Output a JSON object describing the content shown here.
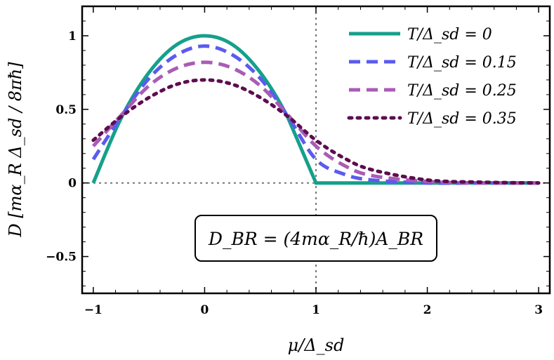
{
  "chart_data": {
    "type": "line",
    "xlabel": "μ/Δ_sd",
    "ylabel": "D [mα_R Δ_sd / 8πħ]",
    "xlim": [
      -1.1,
      3.1
    ],
    "ylim": [
      -0.75,
      1.2
    ],
    "xticks": [
      -1,
      0,
      1,
      2,
      3
    ],
    "xtick_labels": [
      "−1",
      "0",
      "1",
      "2",
      "3"
    ],
    "yticks": [
      -0.5,
      0,
      0.5,
      1
    ],
    "ytick_labels": [
      "−0.5",
      "0",
      "0.5",
      "1"
    ],
    "grid": false,
    "legend_position": "top-right",
    "reference_lines": [
      {
        "orientation": "vertical",
        "x": 1,
        "style": "dotted",
        "color": "#777777"
      },
      {
        "orientation": "horizontal",
        "y": 0,
        "style": "dotted",
        "color": "#777777"
      }
    ],
    "annotation": "D_BR = (4mα_R/ħ)A_BR",
    "series": [
      {
        "name": "T/Δ_sd = 0",
        "style": "solid",
        "color": "#15a08a",
        "x": [
          -1,
          -0.75,
          -0.5,
          -0.25,
          0,
          0.25,
          0.5,
          0.75,
          1,
          1.25,
          1.5,
          2,
          2.5,
          3
        ],
        "y": [
          0,
          0.44,
          0.75,
          0.94,
          1.0,
          0.94,
          0.75,
          0.44,
          0,
          0,
          0,
          0,
          0,
          0
        ]
      },
      {
        "name": "T/Δ_sd = 0.15",
        "style": "dashed",
        "color": "#5b5bef",
        "x": [
          -1,
          -0.75,
          -0.5,
          -0.25,
          0,
          0.25,
          0.5,
          0.75,
          1,
          1.25,
          1.5,
          2,
          2.5,
          3
        ],
        "y": [
          0.16,
          0.45,
          0.71,
          0.87,
          0.93,
          0.87,
          0.71,
          0.45,
          0.16,
          0.06,
          0.02,
          0.0,
          0.0,
          0.0
        ]
      },
      {
        "name": "T/Δ_sd = 0.25",
        "style": "dashed",
        "color": "#a95cb5",
        "x": [
          -1,
          -0.75,
          -0.5,
          -0.25,
          0,
          0.25,
          0.5,
          0.75,
          1,
          1.25,
          1.5,
          2,
          2.5,
          3
        ],
        "y": [
          0.25,
          0.46,
          0.66,
          0.78,
          0.82,
          0.78,
          0.66,
          0.46,
          0.25,
          0.12,
          0.05,
          0.01,
          0.0,
          0.0
        ]
      },
      {
        "name": "T/Δ_sd = 0.35",
        "style": "dotted",
        "color": "#5d0d4f",
        "x": [
          -1,
          -0.75,
          -0.5,
          -0.25,
          0,
          0.25,
          0.5,
          0.75,
          1,
          1.25,
          1.5,
          2,
          2.5,
          3
        ],
        "y": [
          0.29,
          0.45,
          0.58,
          0.67,
          0.7,
          0.67,
          0.58,
          0.45,
          0.29,
          0.17,
          0.09,
          0.02,
          0.005,
          0.0
        ]
      }
    ]
  }
}
